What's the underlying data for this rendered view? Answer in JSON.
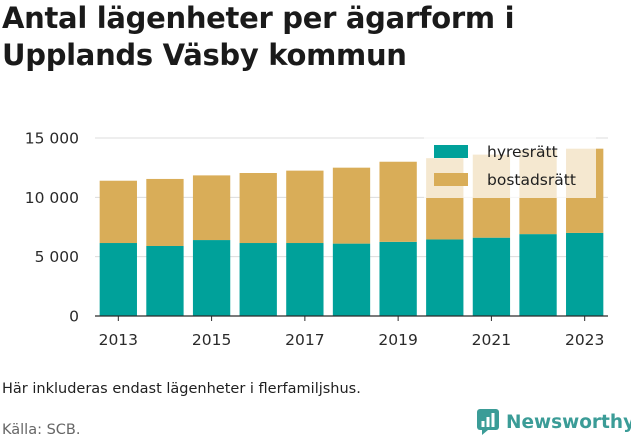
{
  "title": "Antal lägenheter per ägarform i Upplands Väsby kommun",
  "note": "Här inkluderas endast lägenheter i flerfamiljshus.",
  "source": "Källa: SCB.",
  "brand": {
    "name": "Newsworthy",
    "color": "#3b9c97"
  },
  "chart_data": {
    "type": "bar",
    "stacked": true,
    "categories": [
      "2013",
      "2014",
      "2015",
      "2016",
      "2017",
      "2018",
      "2019",
      "2020",
      "2021",
      "2022",
      "2023"
    ],
    "x_tick_labels": [
      "2013",
      "2015",
      "2017",
      "2019",
      "2021",
      "2023"
    ],
    "series": [
      {
        "name": "hyresrätt",
        "color": "#00a19a",
        "values": [
          6150,
          5900,
          6400,
          6150,
          6150,
          6100,
          6250,
          6450,
          6600,
          6900,
          7000
        ]
      },
      {
        "name": "bostadsrätt",
        "color": "#d9ad58",
        "values": [
          5250,
          5650,
          5450,
          5900,
          6100,
          6400,
          6750,
          6850,
          7000,
          7100,
          7100
        ]
      }
    ],
    "ylim": [
      0,
      15000
    ],
    "y_ticks": [
      {
        "value": 0,
        "label": "0"
      },
      {
        "value": 5000,
        "label": "5 000"
      },
      {
        "value": 10000,
        "label": "10 000"
      },
      {
        "value": 15000,
        "label": "15 000"
      }
    ],
    "grid": true,
    "legend_position": "top-right"
  }
}
